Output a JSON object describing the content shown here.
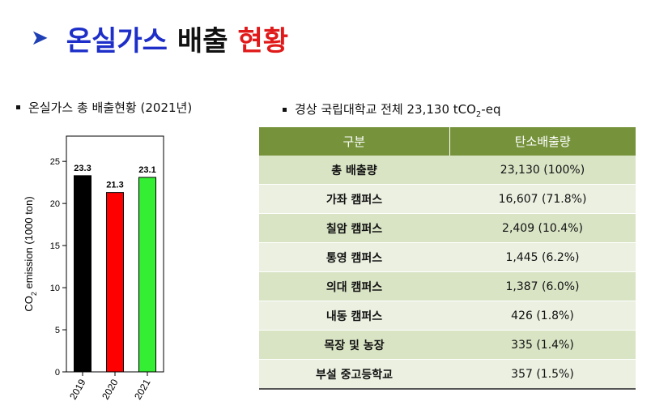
{
  "title": {
    "part1": "온실가스",
    "part2": "배출",
    "part3": "현황"
  },
  "left_heading": "온실가스 총 배출현황 (2021년)",
  "right_heading": {
    "prefix": "경상 국립대학교 전체 23,130 tCO",
    "sub": "2",
    "suffix": "-eq"
  },
  "colors": {
    "bar_2019": "#000000",
    "bar_2020": "#ff0000",
    "bar_2021": "#33ee33",
    "table_header": "#76933c"
  },
  "chart_data": {
    "type": "bar",
    "categories": [
      "2019",
      "2020",
      "2021"
    ],
    "values": [
      23.3,
      21.3,
      23.1
    ],
    "data_labels": [
      "23.3",
      "21.3",
      "23.1"
    ],
    "ylabel": {
      "prefix": "CO",
      "sub": "2",
      "suffix": " emission (1000 ton)"
    },
    "ylim": [
      0,
      28
    ],
    "yticks": [
      0,
      5,
      10,
      15,
      20,
      25
    ],
    "grid": false
  },
  "table": {
    "headers": [
      "구분",
      "탄소배출량"
    ],
    "rows": [
      [
        "총 배출량",
        "23,130 (100%)"
      ],
      [
        "가좌 캠퍼스",
        "16,607 (71.8%)"
      ],
      [
        "칠암 캠퍼스",
        "2,409 (10.4%)"
      ],
      [
        "통영 캠퍼스",
        "1,445 (6.2%)"
      ],
      [
        "의대 캠퍼스",
        "1,387 (6.0%)"
      ],
      [
        "내동 캠퍼스",
        "426 (1.8%)"
      ],
      [
        "목장 및 농장",
        "335 (1.4%)"
      ],
      [
        "부설 중고등학교",
        "357 (1.5%)"
      ]
    ]
  }
}
